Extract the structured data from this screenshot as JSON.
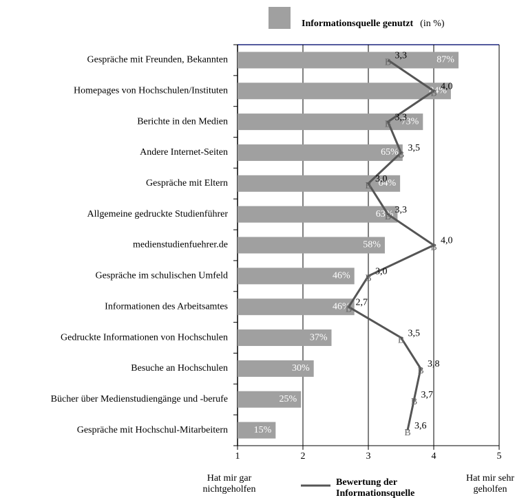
{
  "chart_data": {
    "type": "bar",
    "categories": [
      "Gespräche mit Freunden, Bekannten",
      "Homepages von Hochschulen/Instituten",
      "Berichte in den Medien",
      "Andere Internet-Seiten",
      "Gespräche mit Eltern",
      "Allgemeine gedruckte Studienführer",
      "medienstudienfuehrer.de",
      "Gespräche im schulischen Umfeld",
      "Informationen des Arbeitsamtes",
      "Gedruckte Informationen von Hochschulen",
      "Besuche an Hochschulen",
      "Bücher über Medienstudiengänge und -berufe",
      "Gespräche mit Hochschul-Mitarbeitern"
    ],
    "series": [
      {
        "name": "Informationsquelle genutzt",
        "note": "(in %)",
        "color": "#a0a0a0",
        "axis": "x2",
        "values": [
          87,
          84,
          73,
          65,
          64,
          63,
          58,
          46,
          46,
          37,
          30,
          25,
          15
        ],
        "value_labels": [
          "87%",
          "84%",
          "73%",
          "65%",
          "64%",
          "63%",
          "58%",
          "46%",
          "46%",
          "37%",
          "30%",
          "25%",
          "15%"
        ]
      },
      {
        "name": "Bewertung der Informationsquelle",
        "type": "line",
        "color": "#555555",
        "marker": "B",
        "values": [
          3.3,
          4.0,
          3.3,
          3.5,
          3.0,
          3.3,
          4.0,
          3.0,
          2.7,
          3.5,
          3.8,
          3.7,
          3.6
        ],
        "value_labels": [
          "3,3",
          "4,0",
          "3,3",
          "3,5",
          "3,0",
          "3,3",
          "4,0",
          "3,0",
          "2,7",
          "3,5",
          "3,8",
          "3,7",
          "3,6"
        ]
      }
    ],
    "xlim": [
      1,
      5
    ],
    "xticks": [
      1,
      2,
      3,
      4,
      5
    ],
    "x2lim": [
      0,
      103
    ],
    "grid": true,
    "annotations": [
      "Hat mir gar nichtgeholfen",
      "Hat mir sehr geholfen"
    ]
  }
}
